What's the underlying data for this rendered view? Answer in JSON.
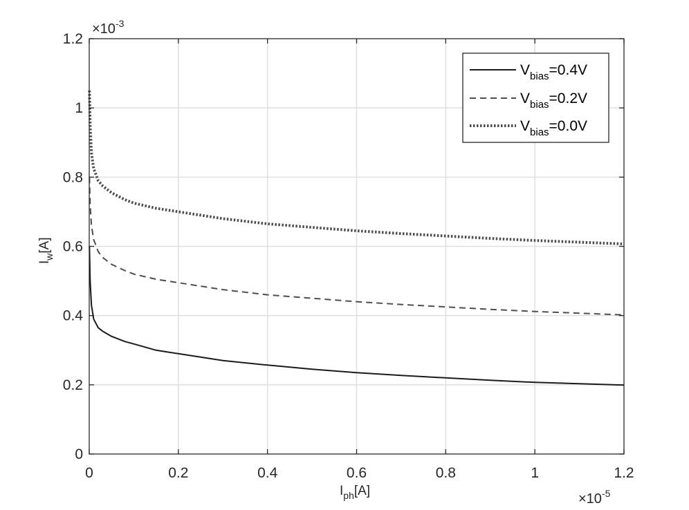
{
  "chart_data": {
    "type": "line",
    "title": "",
    "xlabel": {
      "main": "I",
      "sub": "ph",
      "suffix": "[A]"
    },
    "ylabel": {
      "main": "I",
      "sub": "w",
      "suffix": "[A]"
    },
    "x_multiplier": {
      "base": "×10",
      "exponent": "-5"
    },
    "y_multiplier": {
      "base": "×10",
      "exponent": "-3"
    },
    "xlim": [
      0,
      1.2
    ],
    "ylim": [
      0,
      1.2
    ],
    "x_ticks": [
      0,
      0.2,
      0.4,
      0.6,
      0.8,
      1.0,
      1.2
    ],
    "y_ticks": [
      0,
      0.2,
      0.4,
      0.6,
      0.8,
      1.0,
      1.2
    ],
    "x_tick_labels": [
      "0",
      "0.2",
      "0.4",
      "0.6",
      "0.8",
      "1",
      "1.2"
    ],
    "y_tick_labels": [
      "0",
      "0.2",
      "0.4",
      "0.6",
      "0.8",
      "1",
      "1.2"
    ],
    "grid": true,
    "legend_position": "top-right",
    "series": [
      {
        "name": {
          "main": "V",
          "sub": "bias",
          "suffix": "=0.4V"
        },
        "style": "solid",
        "color": "#1a1a1a",
        "x": [
          0.0005,
          0.002,
          0.005,
          0.01,
          0.02,
          0.03,
          0.05,
          0.08,
          0.1,
          0.15,
          0.2,
          0.3,
          0.4,
          0.5,
          0.6,
          0.7,
          0.8,
          0.9,
          1.0,
          1.1,
          1.2
        ],
        "y": [
          0.6,
          0.5,
          0.43,
          0.39,
          0.365,
          0.355,
          0.34,
          0.325,
          0.318,
          0.3,
          0.29,
          0.27,
          0.257,
          0.245,
          0.235,
          0.227,
          0.22,
          0.213,
          0.207,
          0.203,
          0.199
        ]
      },
      {
        "name": {
          "main": "V",
          "sub": "bias",
          "suffix": "=0.2V"
        },
        "style": "dashed",
        "color": "#4d4d4d",
        "x": [
          0.0005,
          0.002,
          0.005,
          0.01,
          0.02,
          0.03,
          0.05,
          0.08,
          0.1,
          0.15,
          0.2,
          0.3,
          0.4,
          0.5,
          0.6,
          0.7,
          0.8,
          0.9,
          1.0,
          1.1,
          1.2
        ],
        "y": [
          0.8,
          0.72,
          0.66,
          0.62,
          0.585,
          0.568,
          0.548,
          0.53,
          0.52,
          0.505,
          0.495,
          0.475,
          0.46,
          0.45,
          0.44,
          0.432,
          0.425,
          0.418,
          0.412,
          0.407,
          0.402
        ]
      },
      {
        "name": {
          "main": "V",
          "sub": "bias",
          "suffix": "=0.0V"
        },
        "style": "dotted",
        "color": "#4d4d4d",
        "x": [
          0.0005,
          0.002,
          0.005,
          0.01,
          0.02,
          0.03,
          0.05,
          0.08,
          0.1,
          0.15,
          0.2,
          0.3,
          0.4,
          0.5,
          0.6,
          0.7,
          0.8,
          0.9,
          1.0,
          1.1,
          1.2
        ],
        "y": [
          1.05,
          0.95,
          0.87,
          0.825,
          0.79,
          0.775,
          0.755,
          0.735,
          0.725,
          0.71,
          0.7,
          0.68,
          0.665,
          0.655,
          0.645,
          0.637,
          0.63,
          0.623,
          0.617,
          0.612,
          0.607
        ]
      }
    ]
  }
}
